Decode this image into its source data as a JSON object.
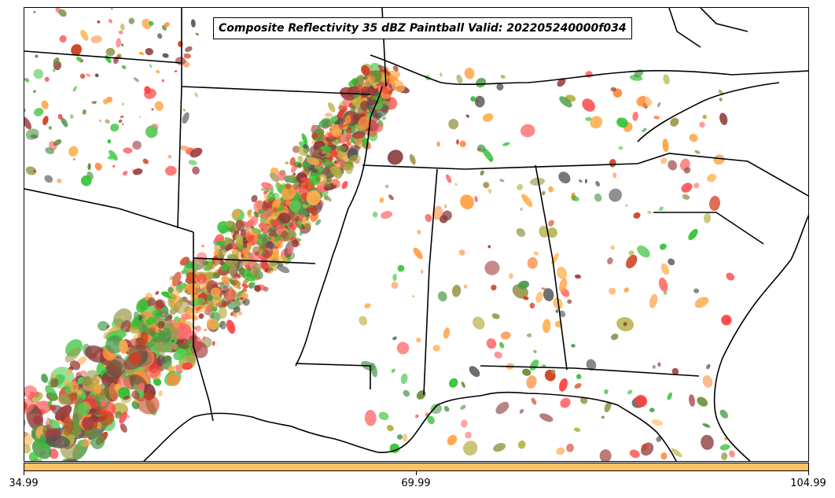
{
  "title": "Composite Reflectivity 35 dBZ Paintball Valid: 202205240000f034",
  "colorbar": {
    "color": "#ffc266",
    "ticks": [
      "34.99",
      "69.99",
      "104.99"
    ]
  },
  "member_colors": [
    "#ff6b6b",
    "#ff4040",
    "#a04040",
    "#8b3a3a",
    "#ff8c40",
    "#ffa040",
    "#ffb050",
    "#b5b040",
    "#9a9a50",
    "#6b8b3a",
    "#4a9a4a",
    "#55cc55",
    "#30c030",
    "#555555",
    "#d04020"
  ],
  "map_style": {
    "background": "#ffffff",
    "border_color": "#000000"
  }
}
